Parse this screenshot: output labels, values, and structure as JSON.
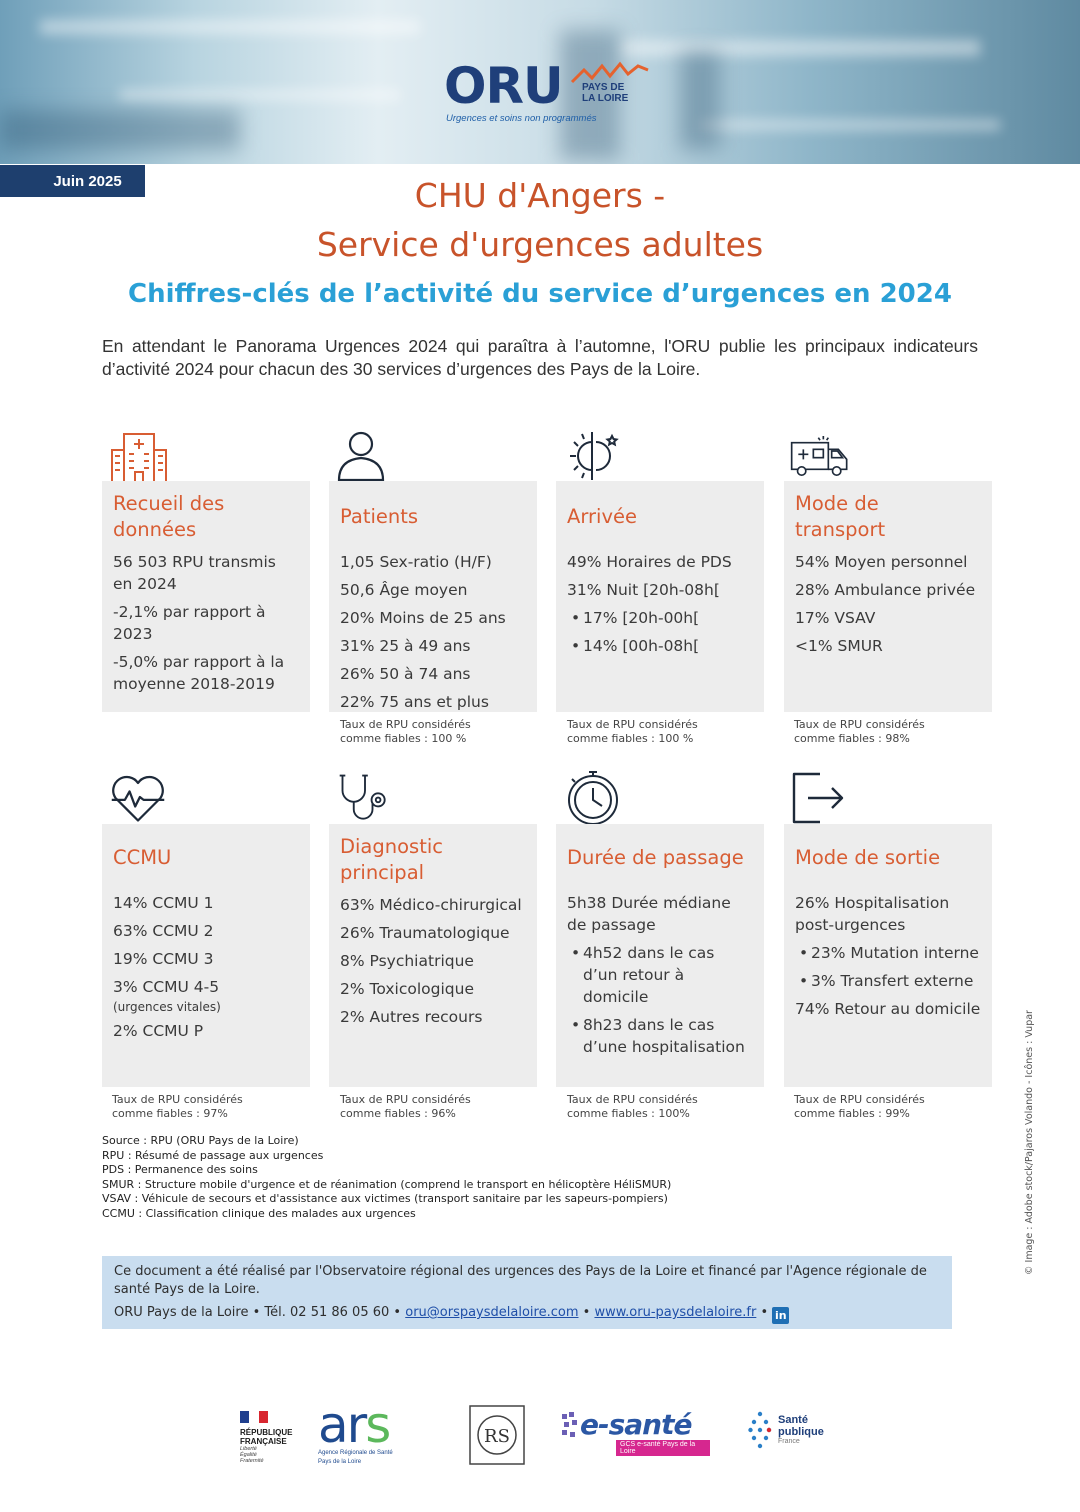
{
  "header": {
    "logo_main": "ORU",
    "logo_region_line1": "PAYS DE",
    "logo_region_line2": "LA LOIRE",
    "logo_tagline": "Urgences et soins non programmés",
    "date": "Juin 2025"
  },
  "title_line1": "CHU d'Angers -",
  "title_line2": "Service d'urgences adultes",
  "subtitle": "Chiffres-clés de l’activité du service d’urgences en 2024",
  "intro": "En attendant le Panorama Urgences 2024 qui paraîtra à l’automne, l'ORU publie les principaux indicateurs d’activité 2024 pour chacun des 30 services d’urgences des Pays de la Loire.",
  "cards": {
    "recueil": {
      "title_l1": "Recueil des",
      "title_l2": "données",
      "lines": [
        "56 503 RPU transmis en 2024",
        "-2,1% par rapport à 2023",
        "-5,0% par rapport à la moyenne 2018-2019"
      ]
    },
    "patients": {
      "title": "Patients",
      "lines": [
        "1,05 Sex-ratio (H/F)",
        "50,6 Âge moyen",
        "20% Moins de 25 ans",
        "31% 25 à 49 ans",
        "26% 50 à 74 ans",
        "22% 75 ans et plus"
      ],
      "reliab_l1": "Taux de RPU considérés",
      "reliab_l2": "comme fiables : 100 %"
    },
    "arrivee": {
      "title": "Arrivée",
      "lines": [
        "49% Horaires de PDS",
        "31% Nuit [20h-08h[",
        "17% [20h-00h[",
        "14% [00h-08h["
      ],
      "reliab_l1": "Taux de RPU considérés",
      "reliab_l2": "comme fiables : 100 %"
    },
    "transport": {
      "title_l1": "Mode de",
      "title_l2": "transport",
      "lines": [
        "54% Moyen personnel",
        "28% Ambulance privée",
        "17% VSAV",
        "<1% SMUR"
      ],
      "reliab_l1": "Taux de RPU considérés",
      "reliab_l2": "comme fiables : 98%"
    },
    "ccmu": {
      "title": "CCMU",
      "lines": [
        "14% CCMU 1",
        "63% CCMU 2",
        "19% CCMU 3",
        "3% CCMU 4-5",
        "(urgences vitales)",
        "2% CCMU P"
      ],
      "reliab_l1": "Taux de RPU considérés",
      "reliab_l2": "comme fiables : 97%"
    },
    "diagnostic": {
      "title_l1": "Diagnostic",
      "title_l2": "principal",
      "lines": [
        "63% Médico-chirurgical",
        "26% Traumatologique",
        "8% Psychiatrique",
        "2% Toxicologique",
        "2% Autres recours"
      ],
      "reliab_l1": "Taux de RPU considérés",
      "reliab_l2": "comme fiables : 96%"
    },
    "duree": {
      "title": "Durée de passage",
      "lines": [
        "5h38 Durée médiane de passage",
        "4h52 dans le cas d’un retour à domicile",
        "8h23 dans le cas d’une hospitalisation"
      ],
      "reliab_l1": "Taux de RPU considérés",
      "reliab_l2": "comme fiables : 100%"
    },
    "sortie": {
      "title": "Mode de sortie",
      "lines": [
        "26% Hospitalisation post-urgences",
        "23% Mutation interne",
        "3% Transfert externe",
        "74% Retour au domicile"
      ],
      "reliab_l1": "Taux de RPU considérés",
      "reliab_l2": "comme fiables : 99%"
    }
  },
  "sources": [
    "Source : RPU (ORU Pays de la Loire)",
    "RPU : Résumé de passage aux urgences",
    "PDS : Permanence des soins",
    "SMUR : Structure mobile d'urgence et de réanimation (comprend le transport en hélicoptère HéliSMUR)",
    "VSAV : Véhicule de secours et d'assistance aux victimes (transport sanitaire par les sapeurs-pompiers)",
    "CCMU : Classification clinique des malades aux urgences"
  ],
  "footer": {
    "text": "Ce document a été réalisé par l'Observatoire régional des urgences des Pays de la Loire et financé par l'Agence régionale de santé Pays de la Loire.",
    "org": "ORU Pays de la Loire",
    "sep": "•",
    "phone": "Tél. 02 51 86 05 60",
    "email": "oru@orspaysdelaloire.com",
    "website": "www.oru-paysdelaloire.fr",
    "linkedin": "in"
  },
  "credit": "© Image : Adobe stock/Pajaros Volando - Icônes : Vupar",
  "logos": {
    "rf_l1": "RÉPUBLIQUE",
    "rf_l2": "FRANÇAISE",
    "rf_motto_1": "Liberté",
    "rf_motto_2": "Égalité",
    "rf_motto_3": "Fraternité",
    "ars_main": "ar",
    "ars_s": "s",
    "ars_sub_1": "Agence Régionale de Santé",
    "ars_sub_2": "Pays de la Loire",
    "rrs": "RS",
    "esante": "e-santé",
    "esante_bar": "GCS e-santé Pays de la Loire",
    "sp_l1": "Santé",
    "sp_l2": "publique",
    "sp_l3": "France"
  },
  "colors": {
    "accent_orange": "#d85d33",
    "accent_blue": "#2aa0d6",
    "navy": "#1e3f6e",
    "card_bg": "#ededed",
    "footer_bg": "#c9ddef"
  }
}
